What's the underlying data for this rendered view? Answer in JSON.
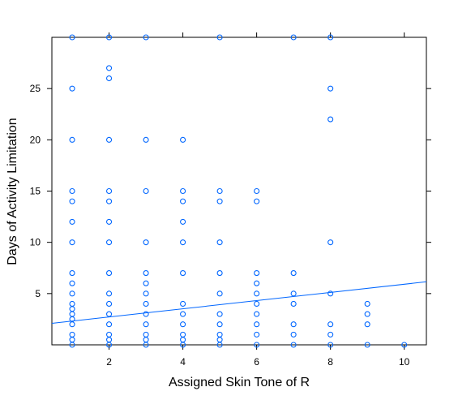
{
  "chart_data": {
    "type": "scatter",
    "xlabel": "Assigned Skin Tone of R",
    "ylabel": "Days of Activity Limitation",
    "xlim": [
      0.45,
      10.6
    ],
    "ylim": [
      0,
      30
    ],
    "x_ticks": [
      2,
      4,
      6,
      8,
      10
    ],
    "y_ticks": [
      5,
      10,
      15,
      20,
      25
    ],
    "grid": false,
    "legend": "none",
    "point_color": "#0066ff",
    "line_color": "#0066ff",
    "points": [
      {
        "x": 1,
        "y": 0
      },
      {
        "x": 1,
        "y": 0.5
      },
      {
        "x": 1,
        "y": 1
      },
      {
        "x": 1,
        "y": 2
      },
      {
        "x": 1,
        "y": 2.5
      },
      {
        "x": 1,
        "y": 3
      },
      {
        "x": 1,
        "y": 3.5
      },
      {
        "x": 1,
        "y": 4
      },
      {
        "x": 1,
        "y": 5
      },
      {
        "x": 1,
        "y": 6
      },
      {
        "x": 1,
        "y": 7
      },
      {
        "x": 1,
        "y": 10
      },
      {
        "x": 1,
        "y": 12
      },
      {
        "x": 1,
        "y": 14
      },
      {
        "x": 1,
        "y": 15
      },
      {
        "x": 1,
        "y": 20
      },
      {
        "x": 1,
        "y": 25
      },
      {
        "x": 1,
        "y": 30
      },
      {
        "x": 2,
        "y": 0
      },
      {
        "x": 2,
        "y": 0.5
      },
      {
        "x": 2,
        "y": 1
      },
      {
        "x": 2,
        "y": 2
      },
      {
        "x": 2,
        "y": 3
      },
      {
        "x": 2,
        "y": 4
      },
      {
        "x": 2,
        "y": 5
      },
      {
        "x": 2,
        "y": 7
      },
      {
        "x": 2,
        "y": 10
      },
      {
        "x": 2,
        "y": 12
      },
      {
        "x": 2,
        "y": 14
      },
      {
        "x": 2,
        "y": 15
      },
      {
        "x": 2,
        "y": 20
      },
      {
        "x": 2,
        "y": 26
      },
      {
        "x": 2,
        "y": 27
      },
      {
        "x": 2,
        "y": 30
      },
      {
        "x": 3,
        "y": 0
      },
      {
        "x": 3,
        "y": 0.5
      },
      {
        "x": 3,
        "y": 1
      },
      {
        "x": 3,
        "y": 2
      },
      {
        "x": 3,
        "y": 3
      },
      {
        "x": 3,
        "y": 4
      },
      {
        "x": 3,
        "y": 5
      },
      {
        "x": 3,
        "y": 6
      },
      {
        "x": 3,
        "y": 7
      },
      {
        "x": 3,
        "y": 10
      },
      {
        "x": 3,
        "y": 15
      },
      {
        "x": 3,
        "y": 20
      },
      {
        "x": 3,
        "y": 30
      },
      {
        "x": 4,
        "y": 0
      },
      {
        "x": 4,
        "y": 0.5
      },
      {
        "x": 4,
        "y": 1
      },
      {
        "x": 4,
        "y": 2
      },
      {
        "x": 4,
        "y": 3
      },
      {
        "x": 4,
        "y": 4
      },
      {
        "x": 4,
        "y": 7
      },
      {
        "x": 4,
        "y": 10
      },
      {
        "x": 4,
        "y": 12
      },
      {
        "x": 4,
        "y": 14
      },
      {
        "x": 4,
        "y": 15
      },
      {
        "x": 4,
        "y": 20
      },
      {
        "x": 5,
        "y": 0
      },
      {
        "x": 5,
        "y": 0.5
      },
      {
        "x": 5,
        "y": 1
      },
      {
        "x": 5,
        "y": 2
      },
      {
        "x": 5,
        "y": 3
      },
      {
        "x": 5,
        "y": 5
      },
      {
        "x": 5,
        "y": 7
      },
      {
        "x": 5,
        "y": 10
      },
      {
        "x": 5,
        "y": 14
      },
      {
        "x": 5,
        "y": 15
      },
      {
        "x": 5,
        "y": 30
      },
      {
        "x": 6,
        "y": 0
      },
      {
        "x": 6,
        "y": 1
      },
      {
        "x": 6,
        "y": 2
      },
      {
        "x": 6,
        "y": 3
      },
      {
        "x": 6,
        "y": 4
      },
      {
        "x": 6,
        "y": 5
      },
      {
        "x": 6,
        "y": 6
      },
      {
        "x": 6,
        "y": 7
      },
      {
        "x": 6,
        "y": 14
      },
      {
        "x": 6,
        "y": 15
      },
      {
        "x": 7,
        "y": 0
      },
      {
        "x": 7,
        "y": 1
      },
      {
        "x": 7,
        "y": 2
      },
      {
        "x": 7,
        "y": 4
      },
      {
        "x": 7,
        "y": 5
      },
      {
        "x": 7,
        "y": 7
      },
      {
        "x": 7,
        "y": 30
      },
      {
        "x": 8,
        "y": 0
      },
      {
        "x": 8,
        "y": 1
      },
      {
        "x": 8,
        "y": 2
      },
      {
        "x": 8,
        "y": 5
      },
      {
        "x": 8,
        "y": 10
      },
      {
        "x": 8,
        "y": 22
      },
      {
        "x": 8,
        "y": 25
      },
      {
        "x": 8,
        "y": 30
      },
      {
        "x": 9,
        "y": 0
      },
      {
        "x": 9,
        "y": 2
      },
      {
        "x": 9,
        "y": 3
      },
      {
        "x": 9,
        "y": 4
      },
      {
        "x": 10,
        "y": 0
      }
    ],
    "fit_line": {
      "x": [
        0.45,
        10.6
      ],
      "y": [
        2.1,
        6.15
      ]
    }
  }
}
